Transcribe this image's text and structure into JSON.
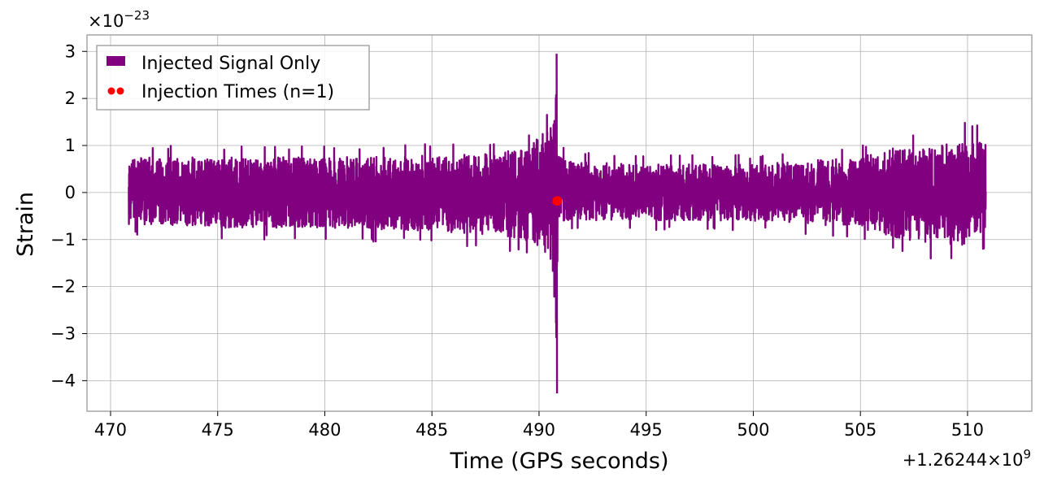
{
  "chart_data": {
    "type": "line",
    "xlabel": "Time (GPS seconds)",
    "ylabel": "Strain",
    "x_offset_label": "+1.26244×10",
    "x_offset_exponent": "9",
    "y_scale_label": "×10",
    "y_scale_exponent": "−23",
    "xlim": [
      468.9,
      513.0
    ],
    "ylim": [
      -4.65,
      3.35
    ],
    "xticks": [
      470,
      475,
      480,
      485,
      490,
      495,
      500,
      505,
      510
    ],
    "yticks": [
      3,
      2,
      1,
      0,
      -1,
      -2,
      -3,
      -4
    ],
    "ytick_labels": [
      "3",
      "2",
      "1",
      "0",
      "−1",
      "−2",
      "−3",
      "−4"
    ],
    "grid": true,
    "legend_position": "top-left",
    "series": [
      {
        "name": "Injected Signal Only",
        "kind": "line",
        "color": "#800080",
        "x_range": [
          470.85,
          510.85
        ],
        "envelope_x": [
          470.9,
          475,
          480,
          485,
          488,
          489.5,
          490.5,
          490.8,
          490.9,
          491.2,
          495,
          500,
          505,
          506.5,
          508,
          510,
          510.85
        ],
        "envelope_upper": [
          1.0,
          1.0,
          1.0,
          1.05,
          1.1,
          1.3,
          1.9,
          2.95,
          1.2,
          0.9,
          0.8,
          0.8,
          1.0,
          1.25,
          1.3,
          1.5,
          1.5
        ],
        "envelope_lower": [
          -0.9,
          -1.0,
          -1.0,
          -1.1,
          -1.2,
          -1.4,
          -1.8,
          -4.27,
          -1.1,
          -0.8,
          -0.8,
          -0.8,
          -1.0,
          -1.3,
          -1.5,
          -1.5,
          -1.2
        ]
      },
      {
        "name": "Injection Times (n=1)",
        "kind": "marker",
        "color": "#ff0000",
        "points": [
          {
            "x": 490.85,
            "y": -0.18
          }
        ]
      }
    ]
  }
}
